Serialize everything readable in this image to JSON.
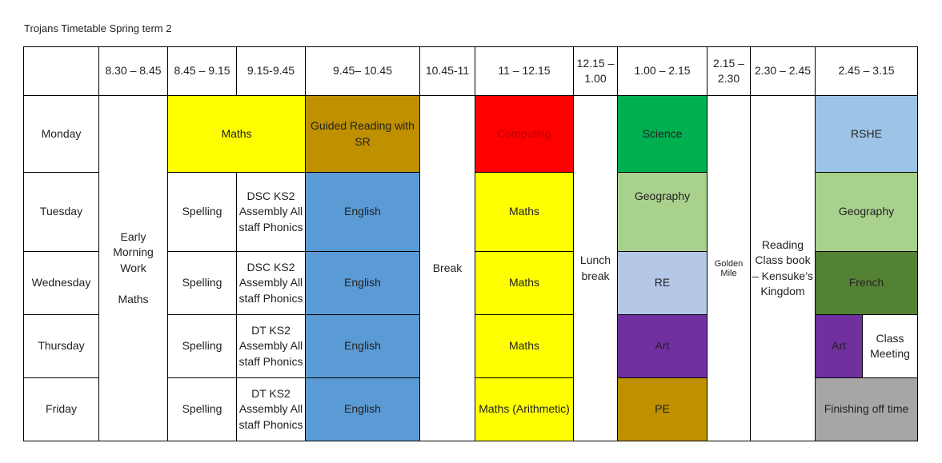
{
  "title": "Trojans Timetable Spring term 2",
  "headers": [
    "8.30 – 8.45",
    "8.45 – 9.15",
    "9.15-9.45",
    "9.45– 10.45",
    "10.45-11",
    "11 – 12.15",
    "12.15 – 1.00",
    "1.00 – 2.15",
    "2.15 – 2.30",
    "2.30 – 2.45",
    "2.45 – 3.15"
  ],
  "days": [
    "Monday",
    "Tuesday",
    "Wednesday",
    "Thursday",
    "Friday"
  ],
  "early_morning": "Early Morning Work\n\nMaths",
  "break": "Break",
  "lunch": "Lunch break",
  "golden_mile": "Golden Mile",
  "reading": "Reading Class book – Kensuke’s Kingdom",
  "monday": {
    "maths": "Maths",
    "guided_reading": "Guided Reading with SR",
    "computing": "Computing",
    "science": "Science",
    "rshe": "RSHE"
  },
  "tuesday": {
    "spelling": "Spelling",
    "assembly": "DSC KS2 Assembly All staff Phonics",
    "english": "English",
    "maths": "Maths",
    "geography_pm": "Geography",
    "geography_late": "Geography"
  },
  "wednesday": {
    "spelling": "Spelling",
    "assembly": "DSC KS2 Assembly All staff Phonics",
    "english": "English",
    "maths": "Maths",
    "re": "RE",
    "french": "French"
  },
  "thursday": {
    "spelling": "Spelling",
    "assembly": "DT KS2 Assembly All staff Phonics",
    "english": "English",
    "maths": "Maths",
    "art": "Art",
    "art_late": "Art",
    "class_meeting": "Class Meeting"
  },
  "friday": {
    "spelling": "Spelling",
    "assembly": "DT KS2 Assembly All staff Phonics",
    "english": "English",
    "maths": "Maths (Arithmetic)",
    "pe": "PE",
    "finishing": "Finishing off time"
  },
  "colors": {
    "yellow": "#ffff00",
    "gold": "#bf9000",
    "red": "#ff0000",
    "green": "#00b050",
    "light_blue": "#9dc3e6",
    "blue": "#5b9bd5",
    "sage": "#a9d18e",
    "lavender": "#b4c7e7",
    "purple": "#7030a0",
    "dark_green": "#548235",
    "grey": "#a6a6a6"
  }
}
